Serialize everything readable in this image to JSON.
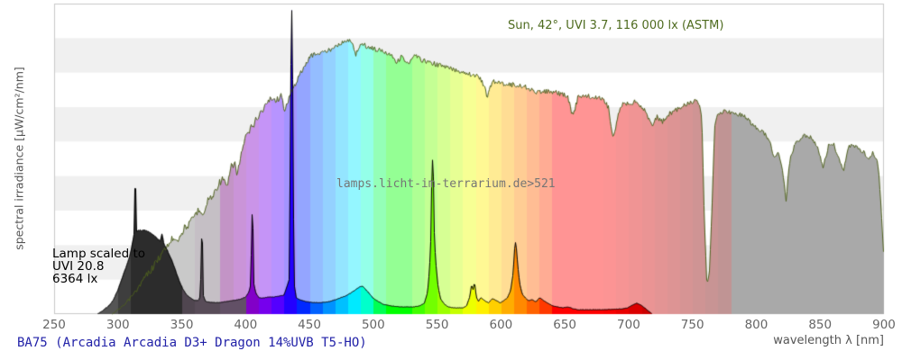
{
  "annotations": {
    "sun_label": "Sun, 42°, UVI 3.7, 116 000 lx (ASTM)",
    "lamp_scale_lines": [
      "Lamp scaled to",
      "UVI 20.8",
      "6364 lx"
    ],
    "watermark": "lamps.licht-im-terrarium.de>521"
  },
  "caption": "BA75 (Arcadia Arcadia D3+ Dragon 14%UVB T5-HO)",
  "axes": {
    "x_label": "wavelength λ [nm]",
    "y_label": "spectral irradiance [µW/cm²/nm]",
    "x_ticks": [
      250,
      300,
      350,
      400,
      450,
      500,
      550,
      600,
      650,
      700,
      750,
      800,
      850,
      900
    ]
  },
  "colors": {
    "background": "#ffffff",
    "band_white": "#ffffff",
    "band_gray": "#f0f0f0",
    "plot_border": "#c9c9c9",
    "sun_line": "#4f611e",
    "sun_text": "#4e6b1f",
    "lamp_line": "#000000",
    "caption_text": "#2222a8",
    "watermark_text": "#757575",
    "tick_text": "#666666",
    "axis_label_text": "#555555"
  },
  "chart_data": {
    "type": "area",
    "title": "Spectral irradiance of lamp BA75 vs sun reference",
    "xlabel": "wavelength λ [nm]",
    "ylabel": "spectral irradiance [µW/cm²/nm]",
    "x_range": [
      250,
      900
    ],
    "y_axis_ticks": "none (values normalized 0-1 of plot height)",
    "grid": "horizontal alternating white/gray bands",
    "legend_position": "none (inline annotations)",
    "series": [
      {
        "name": "sun",
        "label": "Sun, 42°, UVI 3.7, 116 000 lx (ASTM)",
        "line_color": "#4f611e",
        "fill": "pastel-spectral",
        "points": [
          [
            295,
            0
          ],
          [
            300,
            0.015
          ],
          [
            305,
            0.03
          ],
          [
            310,
            0.055
          ],
          [
            315,
            0.08
          ],
          [
            320,
            0.115
          ],
          [
            325,
            0.14
          ],
          [
            330,
            0.17
          ],
          [
            335,
            0.2
          ],
          [
            340,
            0.23
          ],
          [
            344,
            0.25
          ],
          [
            347,
            0.24
          ],
          [
            352,
            0.28
          ],
          [
            356,
            0.29
          ],
          [
            360,
            0.322
          ],
          [
            364,
            0.34
          ],
          [
            367,
            0.32
          ],
          [
            370,
            0.368
          ],
          [
            374,
            0.38
          ],
          [
            378,
            0.417
          ],
          [
            382,
            0.438
          ],
          [
            385,
            0.403
          ],
          [
            388,
            0.47
          ],
          [
            391,
            0.49
          ],
          [
            393,
            0.446
          ],
          [
            396,
            0.513
          ],
          [
            400,
            0.571
          ],
          [
            405,
            0.606
          ],
          [
            410,
            0.641
          ],
          [
            415,
            0.67
          ],
          [
            420,
            0.699
          ],
          [
            424,
            0.687
          ],
          [
            427,
            0.707
          ],
          [
            430,
            0.658
          ],
          [
            434,
            0.699
          ],
          [
            438,
            0.736
          ],
          [
            442,
            0.774
          ],
          [
            446,
            0.794
          ],
          [
            450,
            0.832
          ],
          [
            455,
            0.838
          ],
          [
            460,
            0.843
          ],
          [
            465,
            0.849
          ],
          [
            470,
            0.867
          ],
          [
            475,
            0.872
          ],
          [
            480,
            0.884
          ],
          [
            483,
            0.87
          ],
          [
            486,
            0.838
          ],
          [
            490,
            0.872
          ],
          [
            495,
            0.861
          ],
          [
            500,
            0.855
          ],
          [
            505,
            0.849
          ],
          [
            510,
            0.843
          ],
          [
            515,
            0.832
          ],
          [
            518,
            0.809
          ],
          [
            522,
            0.832
          ],
          [
            527,
            0.803
          ],
          [
            532,
            0.832
          ],
          [
            537,
            0.82
          ],
          [
            540,
            0.815
          ],
          [
            545,
            0.809
          ],
          [
            550,
            0.803
          ],
          [
            555,
            0.797
          ],
          [
            560,
            0.791
          ],
          [
            565,
            0.785
          ],
          [
            570,
            0.78
          ],
          [
            575,
            0.774
          ],
          [
            580,
            0.768
          ],
          [
            585,
            0.751
          ],
          [
            589,
            0.699
          ],
          [
            593,
            0.751
          ],
          [
            598,
            0.745
          ],
          [
            603,
            0.742
          ],
          [
            608,
            0.739
          ],
          [
            613,
            0.736
          ],
          [
            618,
            0.733
          ],
          [
            623,
            0.725
          ],
          [
            627,
            0.71
          ],
          [
            632,
            0.72
          ],
          [
            637,
            0.716
          ],
          [
            642,
            0.713
          ],
          [
            647,
            0.71
          ],
          [
            652,
            0.699
          ],
          [
            656,
            0.635
          ],
          [
            660,
            0.699
          ],
          [
            665,
            0.704
          ],
          [
            670,
            0.699
          ],
          [
            675,
            0.697
          ],
          [
            680,
            0.693
          ],
          [
            684,
            0.664
          ],
          [
            687,
            0.571
          ],
          [
            690,
            0.606
          ],
          [
            693,
            0.67
          ],
          [
            697,
            0.678
          ],
          [
            701,
            0.681
          ],
          [
            705,
            0.684
          ],
          [
            709,
            0.672
          ],
          [
            713,
            0.655
          ],
          [
            716,
            0.62
          ],
          [
            719,
            0.612
          ],
          [
            722,
            0.635
          ],
          [
            726,
            0.618
          ],
          [
            730,
            0.641
          ],
          [
            734,
            0.65
          ],
          [
            738,
            0.661
          ],
          [
            742,
            0.672
          ],
          [
            746,
            0.678
          ],
          [
            750,
            0.684
          ],
          [
            754,
            0.687
          ],
          [
            757,
            0.63
          ],
          [
            759,
            0.3
          ],
          [
            761,
            0.09
          ],
          [
            763,
            0.14
          ],
          [
            765,
            0.35
          ],
          [
            767,
            0.6
          ],
          [
            769,
            0.644
          ],
          [
            772,
            0.65
          ],
          [
            776,
            0.652
          ],
          [
            780,
            0.649
          ],
          [
            784,
            0.645
          ],
          [
            788,
            0.641
          ],
          [
            792,
            0.635
          ],
          [
            796,
            0.61
          ],
          [
            800,
            0.6
          ],
          [
            804,
            0.59
          ],
          [
            808,
            0.57
          ],
          [
            811,
            0.545
          ],
          [
            814,
            0.5
          ],
          [
            817,
            0.525
          ],
          [
            820,
            0.47
          ],
          [
            823,
            0.368
          ],
          [
            826,
            0.5
          ],
          [
            830,
            0.55
          ],
          [
            834,
            0.565
          ],
          [
            838,
            0.575
          ],
          [
            842,
            0.57
          ],
          [
            845,
            0.555
          ],
          [
            848,
            0.53
          ],
          [
            852,
            0.47
          ],
          [
            856,
            0.54
          ],
          [
            860,
            0.55
          ],
          [
            864,
            0.5
          ],
          [
            868,
            0.46
          ],
          [
            872,
            0.54
          ],
          [
            876,
            0.545
          ],
          [
            880,
            0.53
          ],
          [
            884,
            0.52
          ],
          [
            888,
            0.5
          ],
          [
            891,
            0.52
          ],
          [
            894,
            0.5
          ],
          [
            896,
            0.44
          ],
          [
            898,
            0.3
          ],
          [
            900,
            0.155
          ]
        ]
      },
      {
        "name": "lamp",
        "label": "BA75 (Arcadia Arcadia D3+ Dragon 14%UVB T5-HO), scaled to UVI 20.8, 6364 lx",
        "line_color": "#000000",
        "fill": "saturated-spectral",
        "points": [
          [
            284,
            0
          ],
          [
            288,
            0.012
          ],
          [
            292,
            0.023
          ],
          [
            296,
            0.043
          ],
          [
            300,
            0.078
          ],
          [
            304,
            0.125
          ],
          [
            308,
            0.17
          ],
          [
            310,
            0.2
          ],
          [
            312,
            0.245
          ],
          [
            312.7,
            0.26
          ],
          [
            313.2,
            0.412
          ],
          [
            313.8,
            0.26
          ],
          [
            316,
            0.27
          ],
          [
            320,
            0.27
          ],
          [
            324,
            0.264
          ],
          [
            328,
            0.252
          ],
          [
            331,
            0.24
          ],
          [
            333.4,
            0.233
          ],
          [
            334.1,
            0.258
          ],
          [
            335,
            0.23
          ],
          [
            338,
            0.205
          ],
          [
            341,
            0.178
          ],
          [
            344,
            0.145
          ],
          [
            347,
            0.11
          ],
          [
            350,
            0.082
          ],
          [
            353,
            0.062
          ],
          [
            356,
            0.052
          ],
          [
            359,
            0.045
          ],
          [
            363,
            0.043
          ],
          [
            364.6,
            0.06
          ],
          [
            365.4,
            0.258
          ],
          [
            366.2,
            0.06
          ],
          [
            368,
            0.04
          ],
          [
            372,
            0.038
          ],
          [
            376,
            0.037
          ],
          [
            380,
            0.037
          ],
          [
            384,
            0.04
          ],
          [
            388,
            0.042
          ],
          [
            392,
            0.045
          ],
          [
            396,
            0.048
          ],
          [
            400,
            0.055
          ],
          [
            402.5,
            0.07
          ],
          [
            404,
            0.095
          ],
          [
            404.9,
            0.322
          ],
          [
            405.8,
            0.095
          ],
          [
            407.5,
            0.066
          ],
          [
            410,
            0.052
          ],
          [
            414,
            0.052
          ],
          [
            418,
            0.055
          ],
          [
            422,
            0.055
          ],
          [
            426,
            0.058
          ],
          [
            430,
            0.061
          ],
          [
            432.5,
            0.09
          ],
          [
            434.2,
            0.113
          ],
          [
            435.8,
            0.988
          ],
          [
            437.2,
            0.1
          ],
          [
            439,
            0.052
          ],
          [
            442,
            0.046
          ],
          [
            446,
            0.041
          ],
          [
            450,
            0.038
          ],
          [
            454,
            0.037
          ],
          [
            458,
            0.037
          ],
          [
            462,
            0.038
          ],
          [
            466,
            0.041
          ],
          [
            470,
            0.046
          ],
          [
            474,
            0.052
          ],
          [
            478,
            0.058
          ],
          [
            482,
            0.067
          ],
          [
            486,
            0.078
          ],
          [
            489,
            0.087
          ],
          [
            491,
            0.09
          ],
          [
            493,
            0.081
          ],
          [
            496,
            0.067
          ],
          [
            499,
            0.052
          ],
          [
            503,
            0.041
          ],
          [
            507,
            0.032
          ],
          [
            511,
            0.028
          ],
          [
            516,
            0.025
          ],
          [
            521,
            0.023
          ],
          [
            526,
            0.023
          ],
          [
            531,
            0.023
          ],
          [
            536,
            0.026
          ],
          [
            540,
            0.035
          ],
          [
            542.5,
            0.07
          ],
          [
            544,
            0.142
          ],
          [
            545,
            0.235
          ],
          [
            546.1,
            0.513
          ],
          [
            547.2,
            0.235
          ],
          [
            548.5,
            0.155
          ],
          [
            550,
            0.09
          ],
          [
            552,
            0.049
          ],
          [
            555,
            0.032
          ],
          [
            558,
            0.023
          ],
          [
            562,
            0.02
          ],
          [
            566,
            0.02
          ],
          [
            570,
            0.02
          ],
          [
            573,
            0.026
          ],
          [
            575.5,
            0.055
          ],
          [
            576.8,
            0.09
          ],
          [
            577.8,
            0.067
          ],
          [
            578.8,
            0.098
          ],
          [
            580,
            0.055
          ],
          [
            582,
            0.038
          ],
          [
            584,
            0.052
          ],
          [
            587,
            0.042
          ],
          [
            590,
            0.035
          ],
          [
            593,
            0.049
          ],
          [
            596,
            0.043
          ],
          [
            599,
            0.035
          ],
          [
            602,
            0.043
          ],
          [
            605,
            0.052
          ],
          [
            607.5,
            0.075
          ],
          [
            609.5,
            0.13
          ],
          [
            611,
            0.232
          ],
          [
            612.5,
            0.155
          ],
          [
            614,
            0.098
          ],
          [
            616,
            0.064
          ],
          [
            618.5,
            0.052
          ],
          [
            621,
            0.043
          ],
          [
            624,
            0.046
          ],
          [
            627,
            0.038
          ],
          [
            630,
            0.052
          ],
          [
            633,
            0.043
          ],
          [
            636,
            0.035
          ],
          [
            640,
            0.026
          ],
          [
            644,
            0.023
          ],
          [
            648,
            0.02
          ],
          [
            652,
            0.023
          ],
          [
            656,
            0.017
          ],
          [
            660,
            0.014
          ],
          [
            665,
            0.014
          ],
          [
            670,
            0.014
          ],
          [
            675,
            0.014
          ],
          [
            680,
            0.014
          ],
          [
            685,
            0.015
          ],
          [
            690,
            0.016
          ],
          [
            695,
            0.017
          ],
          [
            699,
            0.02
          ],
          [
            703,
            0.029
          ],
          [
            706,
            0.035
          ],
          [
            709,
            0.029
          ],
          [
            712,
            0.02
          ],
          [
            715,
            0.009
          ],
          [
            718,
            0
          ]
        ]
      }
    ]
  }
}
